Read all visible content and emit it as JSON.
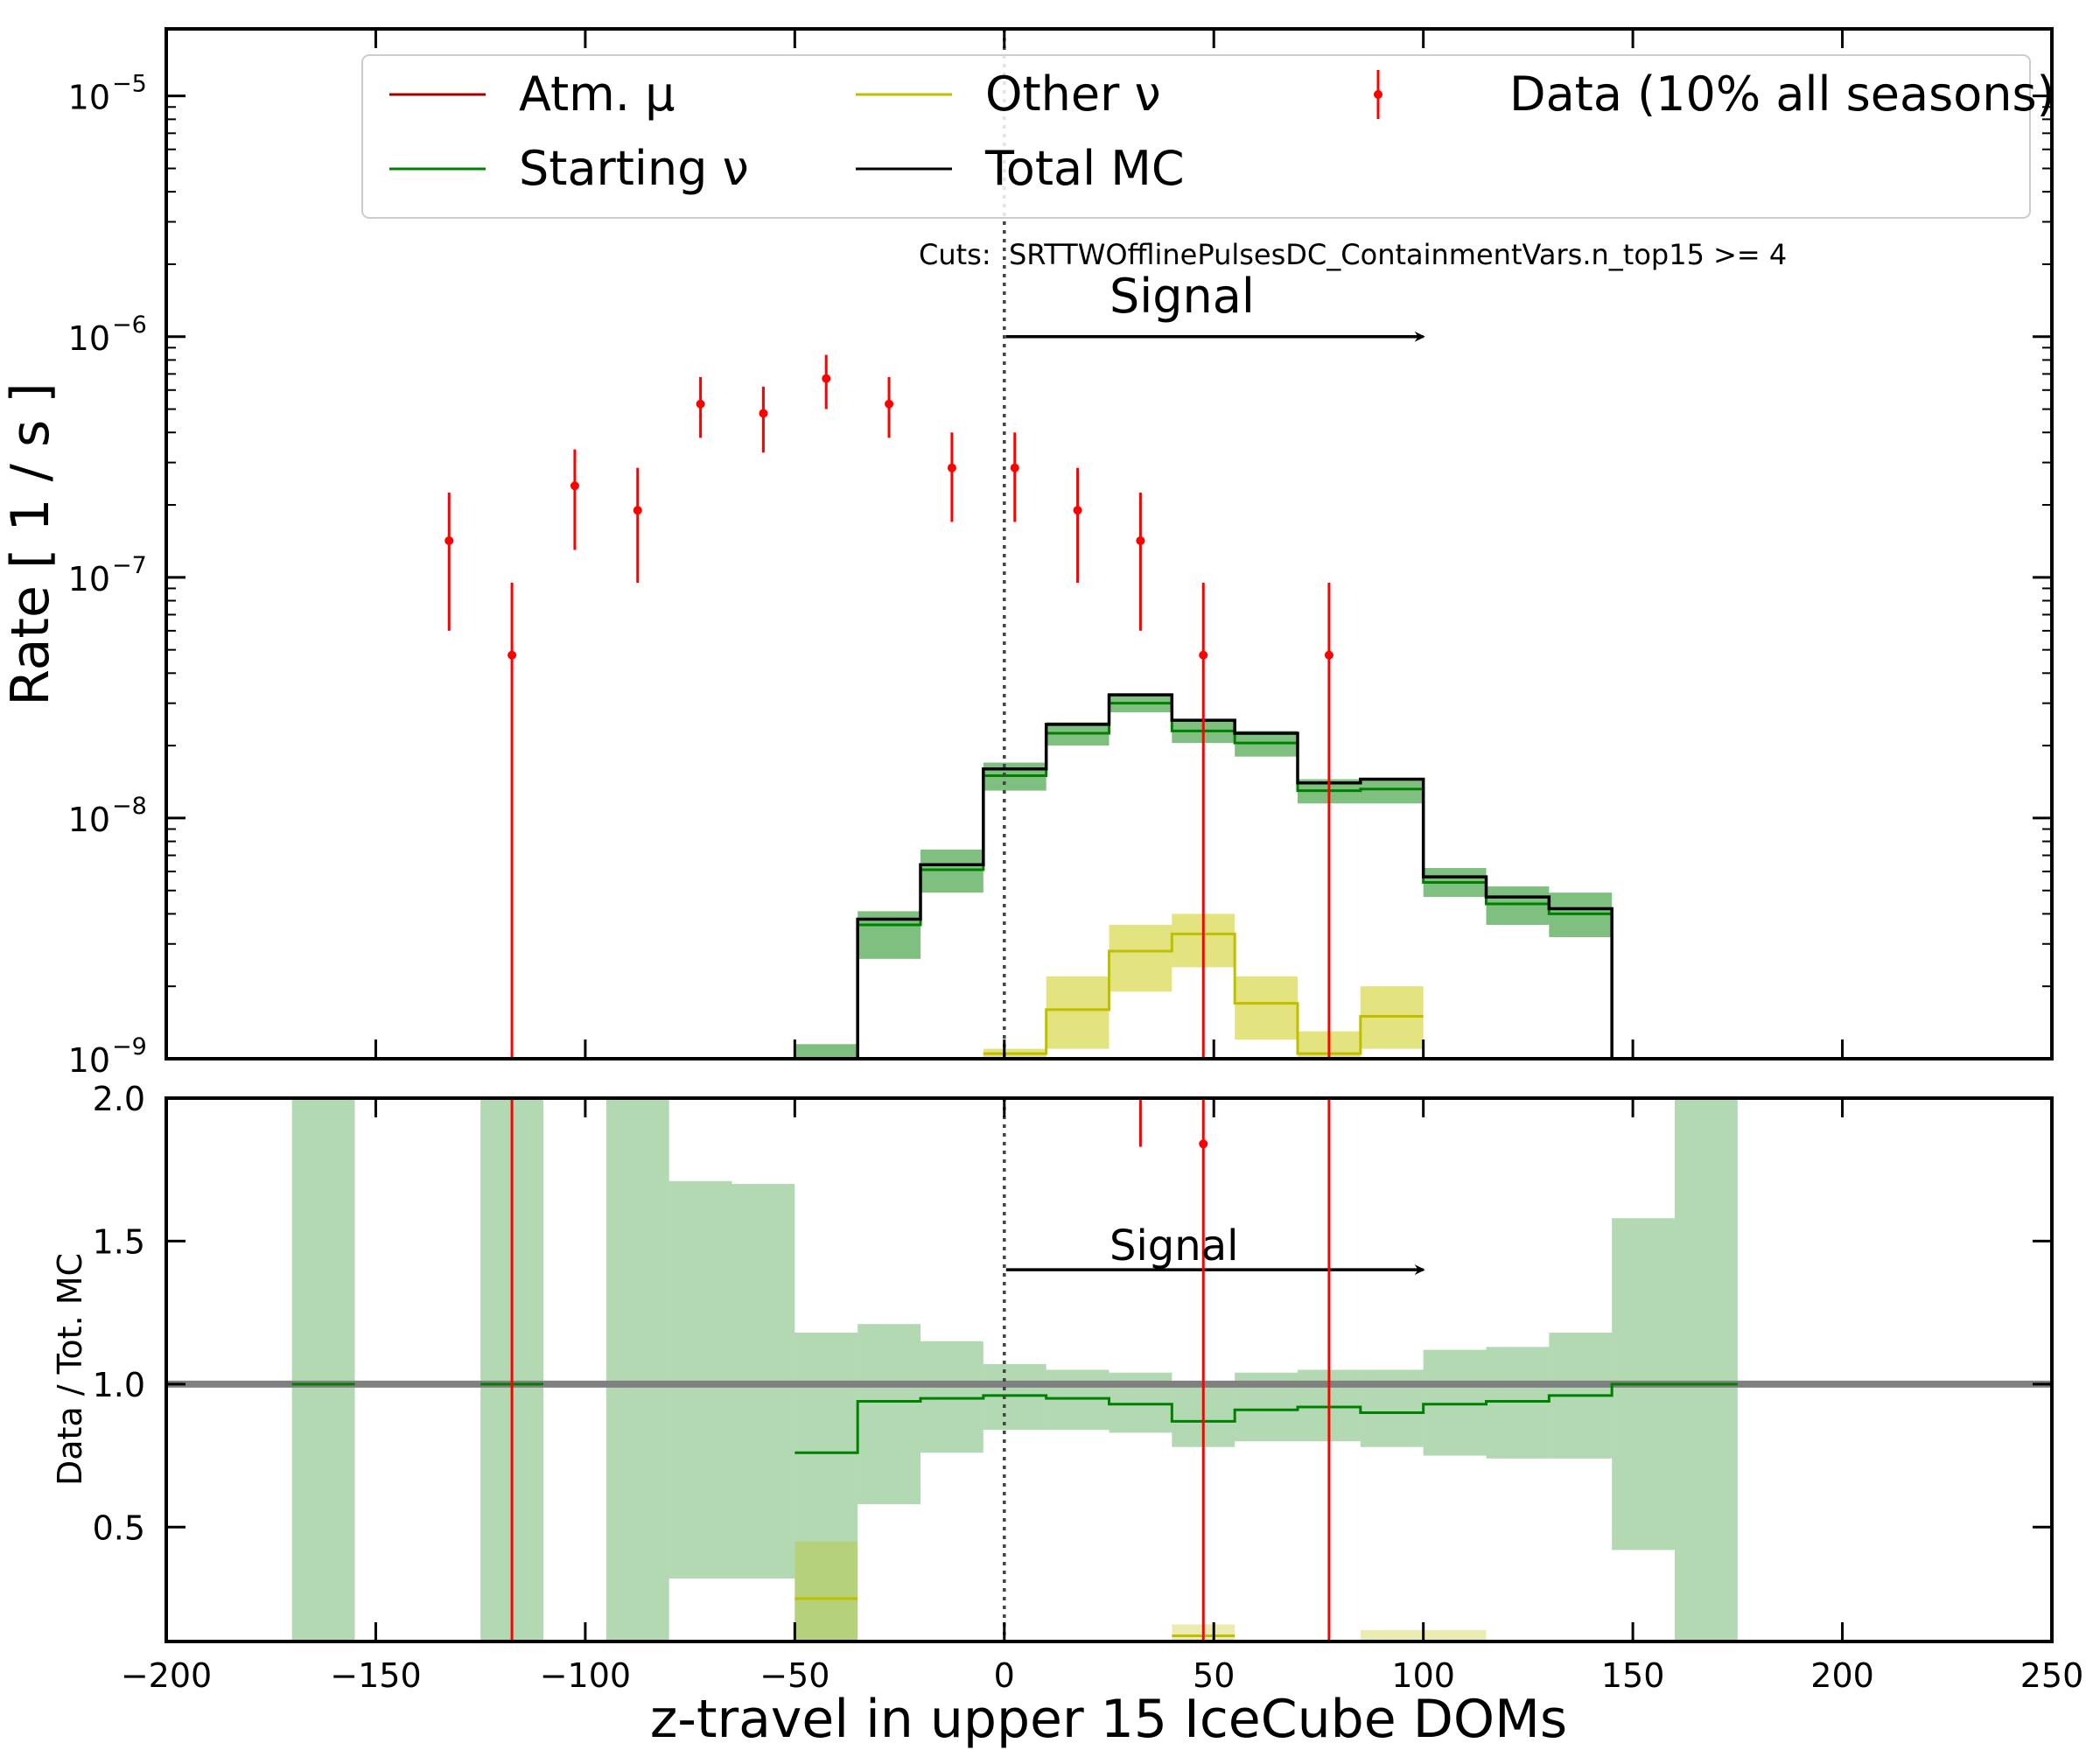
{
  "chart_data": [
    {
      "type": "line",
      "panel": "main",
      "yscale": "log",
      "ylabel": "Rate [ 1 / s ]",
      "xlim": [
        -200,
        250
      ],
      "ylim": [
        1e-09,
        1.9e-05
      ],
      "y_ticks": [
        1e-09,
        1e-08,
        1e-07,
        1e-06,
        1e-05
      ],
      "y_tick_labels": [
        {
          "base": "10",
          "exp": "−9"
        },
        {
          "base": "10",
          "exp": "−8"
        },
        {
          "base": "10",
          "exp": "−7"
        },
        {
          "base": "10",
          "exp": "−6"
        },
        {
          "base": "10",
          "exp": "−5"
        }
      ],
      "cuts_label": "Cuts:  SRTTWOfflinePulsesDC_ContainmentVars.n_top15 >= 4",
      "signal_label": "Signal",
      "signal_arrow": {
        "from": 0,
        "to": 100,
        "y": 1e-06
      },
      "divider_x": 0,
      "legend": {
        "placement": "top-right",
        "entries": [
          {
            "label": "Atm. μ",
            "color": "#a00000",
            "kind": "line"
          },
          {
            "label": "Starting ν",
            "color": "#008000",
            "kind": "line"
          },
          {
            "label": "Other ν",
            "color": "#bfbf00",
            "kind": "line"
          },
          {
            "label": "Total MC",
            "color": "#000000",
            "kind": "line"
          },
          {
            "label": "Data (10% all seasons)",
            "color": "#ff0000",
            "kind": "errorbar"
          }
        ]
      },
      "bin_edges": [
        -200,
        -185,
        -170,
        -155,
        -140,
        -125,
        -110,
        -95,
        -80,
        -65,
        -50,
        -35,
        -20,
        -5,
        10,
        25,
        40,
        55,
        70,
        85,
        100,
        115,
        130,
        145,
        160,
        175,
        190,
        205,
        220,
        235,
        250
      ],
      "series": [
        {
          "name": "Starting ν",
          "color": "#008000",
          "band_color": "#008000",
          "segments": [
            {
              "x0": -50,
              "x1": -35,
              "y": 8e-10,
              "lo": 5e-10,
              "hi": 1.15e-09
            },
            {
              "x0": -35,
              "x1": -20,
              "y": 3.6e-09,
              "lo": 2.6e-09,
              "hi": 4.1e-09
            },
            {
              "x0": -20,
              "x1": -5,
              "y": 6.1e-09,
              "lo": 4.9e-09,
              "hi": 7.4e-09
            },
            {
              "x0": -5,
              "x1": 10,
              "y": 1.5e-08,
              "lo": 1.3e-08,
              "hi": 1.7e-08
            },
            {
              "x0": 10,
              "x1": 25,
              "y": 2.25e-08,
              "lo": 2e-08,
              "hi": 2.5e-08
            },
            {
              "x0": 25,
              "x1": 40,
              "y": 3e-08,
              "lo": 2.75e-08,
              "hi": 3.3e-08
            },
            {
              "x0": 40,
              "x1": 55,
              "y": 2.3e-08,
              "lo": 2.05e-08,
              "hi": 2.55e-08
            },
            {
              "x0": 55,
              "x1": 70,
              "y": 2.05e-08,
              "lo": 1.8e-08,
              "hi": 2.3e-08
            },
            {
              "x0": 70,
              "x1": 85,
              "y": 1.3e-08,
              "lo": 1.15e-08,
              "hi": 1.45e-08
            },
            {
              "x0": 85,
              "x1": 100,
              "y": 1.32e-08,
              "lo": 1.15e-08,
              "hi": 1.45e-08
            },
            {
              "x0": 100,
              "x1": 115,
              "y": 5.4e-09,
              "lo": 4.7e-09,
              "hi": 6.2e-09
            },
            {
              "x0": 115,
              "x1": 130,
              "y": 4.4e-09,
              "lo": 3.6e-09,
              "hi": 5.2e-09
            },
            {
              "x0": 130,
              "x1": 145,
              "y": 4e-09,
              "lo": 3.2e-09,
              "hi": 4.9e-09
            }
          ]
        },
        {
          "name": "Other ν",
          "color": "#bfbf00",
          "band_color": "#c8c800",
          "segments": [
            {
              "x0": -5,
              "x1": 10,
              "y": 1.05e-09,
              "lo": 1e-09,
              "hi": 1.1e-09
            },
            {
              "x0": 10,
              "x1": 25,
              "y": 1.6e-09,
              "lo": 1.1e-09,
              "hi": 2.2e-09
            },
            {
              "x0": 25,
              "x1": 40,
              "y": 2.8e-09,
              "lo": 1.9e-09,
              "hi": 3.6e-09
            },
            {
              "x0": 40,
              "x1": 55,
              "y": 3.3e-09,
              "lo": 2.4e-09,
              "hi": 4e-09
            },
            {
              "x0": 55,
              "x1": 70,
              "y": 1.7e-09,
              "lo": 1.2e-09,
              "hi": 2.2e-09
            },
            {
              "x0": 70,
              "x1": 85,
              "y": 1.05e-09,
              "lo": 1e-09,
              "hi": 1.3e-09
            },
            {
              "x0": 85,
              "x1": 100,
              "y": 1.5e-09,
              "lo": 1.1e-09,
              "hi": 2e-09
            }
          ]
        },
        {
          "name": "Total MC",
          "color": "#000000",
          "segments": [
            {
              "x0": -35,
              "x1": -20,
              "y": 3.8e-09
            },
            {
              "x0": -20,
              "x1": -5,
              "y": 6.4e-09
            },
            {
              "x0": -5,
              "x1": 10,
              "y": 1.6e-08
            },
            {
              "x0": 10,
              "x1": 25,
              "y": 2.45e-08
            },
            {
              "x0": 25,
              "x1": 40,
              "y": 3.25e-08
            },
            {
              "x0": 40,
              "x1": 55,
              "y": 2.55e-08
            },
            {
              "x0": 55,
              "x1": 70,
              "y": 2.25e-08
            },
            {
              "x0": 70,
              "x1": 85,
              "y": 1.4e-08
            },
            {
              "x0": 85,
              "x1": 100,
              "y": 1.45e-08
            },
            {
              "x0": 100,
              "x1": 115,
              "y": 5.7e-09
            },
            {
              "x0": 115,
              "x1": 130,
              "y": 4.7e-09
            },
            {
              "x0": 130,
              "x1": 145,
              "y": 4.2e-09
            }
          ]
        },
        {
          "name": "Data (10% all seasons)",
          "color": "#ff0000",
          "points": [
            {
              "x": -132.5,
              "y": 1.42e-07,
              "lo": 6e-08,
              "hi": 2.25e-07
            },
            {
              "x": -117.5,
              "y": 4.75e-08,
              "lo": 1e-09,
              "hi": 9.5e-08
            },
            {
              "x": -102.5,
              "y": 2.4e-07,
              "lo": 1.3e-07,
              "hi": 3.4e-07
            },
            {
              "x": -87.5,
              "y": 1.9e-07,
              "lo": 9.5e-08,
              "hi": 2.85e-07
            },
            {
              "x": -72.5,
              "y": 5.25e-07,
              "lo": 3.8e-07,
              "hi": 6.8e-07
            },
            {
              "x": -57.5,
              "y": 4.8e-07,
              "lo": 3.3e-07,
              "hi": 6.2e-07
            },
            {
              "x": -42.5,
              "y": 6.7e-07,
              "lo": 5e-07,
              "hi": 8.4e-07
            },
            {
              "x": -27.5,
              "y": 5.25e-07,
              "lo": 3.8e-07,
              "hi": 6.8e-07
            },
            {
              "x": -12.5,
              "y": 2.85e-07,
              "lo": 1.7e-07,
              "hi": 4e-07
            },
            {
              "x": 2.5,
              "y": 2.85e-07,
              "lo": 1.7e-07,
              "hi": 4e-07
            },
            {
              "x": 17.5,
              "y": 1.9e-07,
              "lo": 9.5e-08,
              "hi": 2.85e-07
            },
            {
              "x": 32.5,
              "y": 1.42e-07,
              "lo": 6e-08,
              "hi": 2.25e-07
            },
            {
              "x": 47.5,
              "y": 4.75e-08,
              "lo": 1e-09,
              "hi": 9.5e-08
            },
            {
              "x": 77.5,
              "y": 4.75e-08,
              "lo": 1e-09,
              "hi": 9.5e-08
            }
          ]
        }
      ]
    },
    {
      "type": "line",
      "panel": "ratio",
      "xlabel": "z-travel in upper 15 IceCube DOMs",
      "ylabel": "Data / Tot. MC",
      "xlim": [
        -200,
        250
      ],
      "ylim": [
        0.1,
        2.0
      ],
      "x_ticks": [
        -200,
        -150,
        -100,
        -50,
        0,
        50,
        100,
        150,
        200,
        250
      ],
      "x_tick_labels": [
        "−200",
        "−150",
        "−100",
        "−50",
        "0",
        "50",
        "100",
        "150",
        "200",
        "250"
      ],
      "y_ticks": [
        0.5,
        1.0,
        1.5,
        2.0
      ],
      "y_tick_labels": [
        "0.5",
        "1.0",
        "1.5",
        "2.0"
      ],
      "reference_line": 1.0,
      "signal_label": "Signal",
      "signal_arrow": {
        "from": 0,
        "to": 100,
        "y": 1.4
      },
      "divider_x": 0,
      "bands": [
        {
          "name": "Starting ν",
          "color": "#008000",
          "segments": [
            {
              "x0": -170,
              "x1": -155,
              "lo": 0.1,
              "hi": 2.0
            },
            {
              "x0": -125,
              "x1": -110,
              "lo": 0.1,
              "hi": 2.0
            },
            {
              "x0": -95,
              "x1": -80,
              "lo": 0.1,
              "hi": 2.0
            },
            {
              "x0": -80,
              "x1": -65,
              "lo": 0.32,
              "hi": 1.71
            },
            {
              "x0": -65,
              "x1": -50,
              "lo": 0.32,
              "hi": 1.7
            },
            {
              "x0": -50,
              "x1": -35,
              "lo": 0.1,
              "hi": 1.18
            },
            {
              "x0": -35,
              "x1": -20,
              "lo": 0.58,
              "hi": 1.21
            },
            {
              "x0": -20,
              "x1": -5,
              "lo": 0.76,
              "hi": 1.15
            },
            {
              "x0": -5,
              "x1": 10,
              "lo": 0.84,
              "hi": 1.07
            },
            {
              "x0": 10,
              "x1": 25,
              "lo": 0.84,
              "hi": 1.05
            },
            {
              "x0": 25,
              "x1": 40,
              "lo": 0.83,
              "hi": 1.04
            },
            {
              "x0": 40,
              "x1": 55,
              "lo": 0.78,
              "hi": 1.0
            },
            {
              "x0": 55,
              "x1": 70,
              "lo": 0.8,
              "hi": 1.04
            },
            {
              "x0": 70,
              "x1": 85,
              "lo": 0.8,
              "hi": 1.05
            },
            {
              "x0": 85,
              "x1": 100,
              "lo": 0.78,
              "hi": 1.05
            },
            {
              "x0": 100,
              "x1": 115,
              "lo": 0.75,
              "hi": 1.12
            },
            {
              "x0": 115,
              "x1": 130,
              "lo": 0.74,
              "hi": 1.13
            },
            {
              "x0": 130,
              "x1": 145,
              "lo": 0.74,
              "hi": 1.18
            },
            {
              "x0": 145,
              "x1": 160,
              "lo": 0.42,
              "hi": 1.58
            },
            {
              "x0": 160,
              "x1": 175,
              "lo": 0.1,
              "hi": 2.0
            }
          ]
        },
        {
          "name": "Other ν",
          "color": "#bfbf00",
          "segments": [
            {
              "x0": -50,
              "x1": -35,
              "lo": 0.1,
              "hi": 0.45
            },
            {
              "x0": 40,
              "x1": 55,
              "lo": 0.1,
              "hi": 0.16
            },
            {
              "x0": 85,
              "x1": 115,
              "lo": 0.1,
              "hi": 0.14
            }
          ]
        }
      ],
      "series": [
        {
          "name": "Starting ν",
          "color": "#008000",
          "segments": [
            {
              "x0": -170,
              "x1": -155,
              "y": 1.0
            },
            {
              "x0": -125,
              "x1": -110,
              "y": 1.0
            },
            {
              "x0": -50,
              "x1": -35,
              "y": 0.76
            },
            {
              "x0": -35,
              "x1": -20,
              "y": 0.94
            },
            {
              "x0": -20,
              "x1": -5,
              "y": 0.95
            },
            {
              "x0": -5,
              "x1": 10,
              "y": 0.96
            },
            {
              "x0": 10,
              "x1": 25,
              "y": 0.95
            },
            {
              "x0": 25,
              "x1": 40,
              "y": 0.93
            },
            {
              "x0": 40,
              "x1": 55,
              "y": 0.87
            },
            {
              "x0": 55,
              "x1": 70,
              "y": 0.91
            },
            {
              "x0": 70,
              "x1": 85,
              "y": 0.92
            },
            {
              "x0": 85,
              "x1": 100,
              "y": 0.9
            },
            {
              "x0": 100,
              "x1": 115,
              "y": 0.93
            },
            {
              "x0": 115,
              "x1": 130,
              "y": 0.94
            },
            {
              "x0": 130,
              "x1": 145,
              "y": 0.96
            },
            {
              "x0": 145,
              "x1": 175,
              "y": 1.0
            }
          ]
        },
        {
          "name": "Other ν",
          "color": "#bfbf00",
          "segments": [
            {
              "x0": -50,
              "x1": -35,
              "y": 0.25
            },
            {
              "x0": 40,
              "x1": 55,
              "y": 0.12
            }
          ]
        },
        {
          "name": "Data (10% all seasons)",
          "color": "#ff0000",
          "points": [
            {
              "x": -117.5,
              "y": 2.1,
              "lo": 0.1,
              "hi": 2.1
            },
            {
              "x": 32.5,
              "y": 2.2,
              "lo": 1.83,
              "hi": 2.1
            },
            {
              "x": 47.5,
              "y": 1.84,
              "lo": 0.1,
              "hi": 2.1
            },
            {
              "x": 77.5,
              "y": 2.4,
              "lo": 0.1,
              "hi": 2.1
            }
          ]
        }
      ]
    }
  ]
}
